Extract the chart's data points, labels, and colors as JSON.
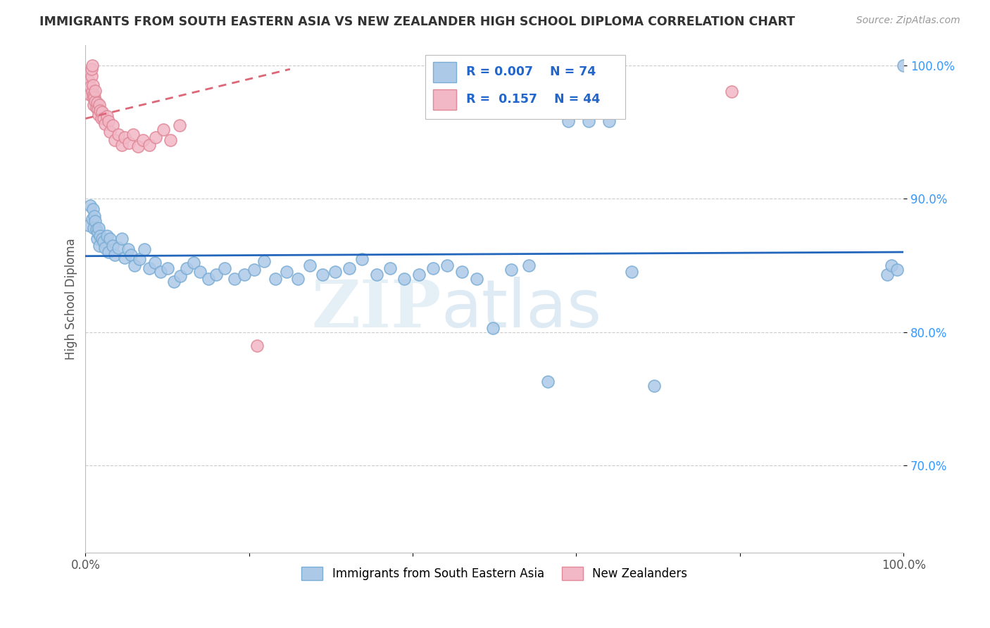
{
  "title": "IMMIGRANTS FROM SOUTH EASTERN ASIA VS NEW ZEALANDER HIGH SCHOOL DIPLOMA CORRELATION CHART",
  "source": "Source: ZipAtlas.com",
  "ylabel": "High School Diploma",
  "xlim": [
    0,
    1.0
  ],
  "ylim": [
    0.635,
    1.015
  ],
  "yticks": [
    0.7,
    0.8,
    0.9,
    1.0
  ],
  "ytick_labels": [
    "70.0%",
    "80.0%",
    "90.0%",
    "100.0%"
  ],
  "xticks": [
    0.0,
    0.2,
    0.4,
    0.6,
    0.8,
    1.0
  ],
  "xtick_labels": [
    "0.0%",
    "",
    "",
    "",
    "",
    "100.0%"
  ],
  "blue_color": "#adc9e8",
  "blue_edge": "#7aadd4",
  "pink_color": "#f2b8c6",
  "pink_edge": "#e08898",
  "trend_blue": "#2266bb",
  "trend_pink": "#dd6677",
  "legend_r_blue": "0.007",
  "legend_n_blue": "74",
  "legend_r_pink": "0.157",
  "legend_n_pink": "44",
  "blue_x": [
    0.004,
    0.006,
    0.008,
    0.009,
    0.01,
    0.011,
    0.012,
    0.013,
    0.014,
    0.015,
    0.016,
    0.017,
    0.018,
    0.02,
    0.022,
    0.024,
    0.026,
    0.028,
    0.03,
    0.033,
    0.036,
    0.04,
    0.044,
    0.048,
    0.052,
    0.056,
    0.06,
    0.066,
    0.072,
    0.078,
    0.085,
    0.092,
    0.1,
    0.108,
    0.116,
    0.124,
    0.132,
    0.14,
    0.15,
    0.16,
    0.17,
    0.182,
    0.194,
    0.206,
    0.218,
    0.232,
    0.246,
    0.26,
    0.274,
    0.29,
    0.305,
    0.322,
    0.338,
    0.356,
    0.372,
    0.39,
    0.408,
    0.425,
    0.442,
    0.46,
    0.478,
    0.498,
    0.52,
    0.542,
    0.565,
    0.59,
    0.615,
    0.64,
    0.668,
    0.695,
    0.98,
    0.985,
    0.992,
    1.0
  ],
  "blue_y": [
    0.88,
    0.895,
    0.885,
    0.892,
    0.878,
    0.887,
    0.883,
    0.877,
    0.87,
    0.875,
    0.878,
    0.865,
    0.872,
    0.87,
    0.868,
    0.863,
    0.872,
    0.86,
    0.87,
    0.865,
    0.858,
    0.863,
    0.87,
    0.856,
    0.862,
    0.858,
    0.85,
    0.855,
    0.862,
    0.848,
    0.852,
    0.845,
    0.848,
    0.838,
    0.842,
    0.848,
    0.852,
    0.845,
    0.84,
    0.843,
    0.848,
    0.84,
    0.843,
    0.847,
    0.853,
    0.84,
    0.845,
    0.84,
    0.85,
    0.843,
    0.845,
    0.848,
    0.855,
    0.843,
    0.848,
    0.84,
    0.843,
    0.848,
    0.85,
    0.845,
    0.84,
    0.803,
    0.847,
    0.85,
    0.763,
    0.958,
    0.958,
    0.958,
    0.845,
    0.76,
    0.843,
    0.85,
    0.847,
    1.0
  ],
  "pink_x": [
    0.003,
    0.004,
    0.005,
    0.006,
    0.007,
    0.007,
    0.008,
    0.008,
    0.009,
    0.009,
    0.01,
    0.01,
    0.011,
    0.012,
    0.012,
    0.013,
    0.014,
    0.015,
    0.016,
    0.017,
    0.018,
    0.019,
    0.02,
    0.022,
    0.024,
    0.026,
    0.028,
    0.03,
    0.033,
    0.036,
    0.04,
    0.044,
    0.048,
    0.053,
    0.058,
    0.064,
    0.07,
    0.078,
    0.086,
    0.095,
    0.104,
    0.115,
    0.21,
    0.79
  ],
  "pink_y": [
    0.985,
    0.988,
    0.978,
    0.984,
    0.992,
    0.997,
    0.98,
    1.0,
    0.985,
    0.976,
    0.97,
    0.978,
    0.976,
    0.973,
    0.981,
    0.968,
    0.972,
    0.967,
    0.963,
    0.97,
    0.966,
    0.96,
    0.965,
    0.96,
    0.956,
    0.962,
    0.958,
    0.95,
    0.955,
    0.944,
    0.948,
    0.94,
    0.946,
    0.942,
    0.948,
    0.939,
    0.944,
    0.94,
    0.946,
    0.952,
    0.944,
    0.955,
    0.79,
    0.98
  ],
  "watermark_zip": "ZIP",
  "watermark_atlas": "atlas",
  "background_color": "#ffffff",
  "grid_color": "#cccccc",
  "blue_trend_y_start": 0.857,
  "blue_trend_y_end": 0.86,
  "pink_trend_x_start": 0.0,
  "pink_trend_x_end": 0.25,
  "pink_trend_y_start": 0.96,
  "pink_trend_y_end": 0.997
}
